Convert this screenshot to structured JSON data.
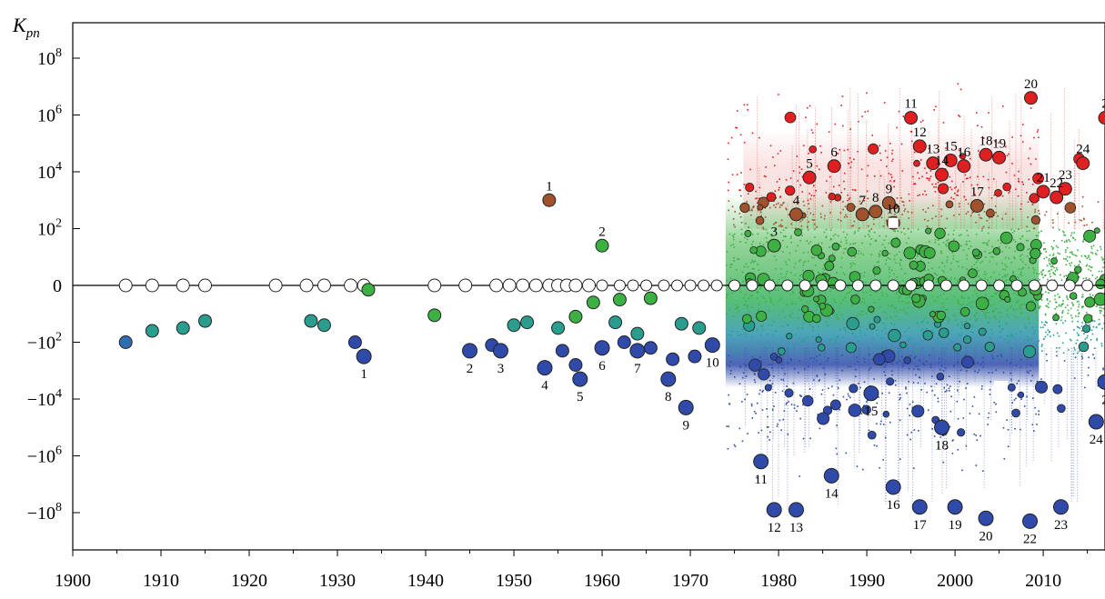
{
  "chart_data": {
    "type": "scatter",
    "title": "",
    "ylabel": "K",
    "ylabel_sub": "pn",
    "xlabel": "",
    "xlim": [
      1900,
      2017
    ],
    "x_ticks": [
      1900,
      1910,
      1920,
      1930,
      1940,
      1950,
      1960,
      1970,
      1980,
      1990,
      2000,
      2010
    ],
    "y_scale": "symmetric-log",
    "y_ticks": [
      {
        "v": 8,
        "base": "10",
        "exp": "8"
      },
      {
        "v": 6,
        "base": "10",
        "exp": "6"
      },
      {
        "v": 4,
        "base": "10",
        "exp": "4"
      },
      {
        "v": 2,
        "base": "10",
        "exp": "2"
      },
      {
        "v": 0,
        "base": "0",
        "exp": ""
      },
      {
        "v": -2,
        "base": "−10",
        "exp": "2"
      },
      {
        "v": -4,
        "base": "−10",
        "exp": "4"
      },
      {
        "v": -6,
        "base": "−10",
        "exp": "6"
      },
      {
        "v": -8,
        "base": "−10",
        "exp": "8"
      }
    ],
    "grid": false,
    "colors": {
      "positive_high": "#e02020",
      "positive_mid": "#a0522d",
      "near_zero": "#3cb043",
      "negative_mid": "#2a9d8f",
      "negative_high": "#2f4aa8",
      "zero_marker": "#ffffff"
    },
    "numbered_positive": [
      {
        "label": "1",
        "x": 1954.0,
        "y": 3.0
      },
      {
        "label": "2",
        "x": 1960.0,
        "y": 1.4
      },
      {
        "label": "3",
        "x": 1979.5,
        "y": 1.4
      },
      {
        "label": "4",
        "x": 1982.0,
        "y": 2.5
      },
      {
        "label": "5",
        "x": 1983.5,
        "y": 3.8
      },
      {
        "label": "6",
        "x": 1986.3,
        "y": 4.2
      },
      {
        "label": "7",
        "x": 1989.5,
        "y": 2.5
      },
      {
        "label": "8",
        "x": 1991.0,
        "y": 2.6
      },
      {
        "label": "9",
        "x": 1992.5,
        "y": 2.9
      },
      {
        "label": "10",
        "x": 1993.0,
        "y": 2.2
      },
      {
        "label": "11",
        "x": 1995.0,
        "y": 5.9
      },
      {
        "label": "12",
        "x": 1996.0,
        "y": 4.9
      },
      {
        "label": "13",
        "x": 1997.5,
        "y": 4.3
      },
      {
        "label": "14",
        "x": 1998.5,
        "y": 3.9
      },
      {
        "label": "15",
        "x": 1999.5,
        "y": 4.4
      },
      {
        "label": "16",
        "x": 2001.0,
        "y": 4.2
      },
      {
        "label": "17",
        "x": 2002.5,
        "y": 2.8
      },
      {
        "label": "18",
        "x": 2003.5,
        "y": 4.6
      },
      {
        "label": "19",
        "x": 2005.0,
        "y": 4.5
      },
      {
        "label": "20",
        "x": 2008.6,
        "y": 6.6
      },
      {
        "label": "21",
        "x": 2010.0,
        "y": 3.3
      },
      {
        "label": "22",
        "x": 2011.5,
        "y": 3.1
      },
      {
        "label": "23",
        "x": 2012.5,
        "y": 3.4
      },
      {
        "label": "24",
        "x": 2014.5,
        "y": 4.3
      },
      {
        "label": "2",
        "x": 2017.0,
        "y": 5.9
      }
    ],
    "numbered_negative": [
      {
        "label": "1",
        "x": 1933.0,
        "y": -2.5
      },
      {
        "label": "2",
        "x": 1945.0,
        "y": -2.3
      },
      {
        "label": "3",
        "x": 1948.5,
        "y": -2.3
      },
      {
        "label": "4",
        "x": 1953.5,
        "y": -2.9
      },
      {
        "label": "5",
        "x": 1957.5,
        "y": -3.3
      },
      {
        "label": "6",
        "x": 1960.0,
        "y": -2.2
      },
      {
        "label": "7",
        "x": 1964.0,
        "y": -2.3
      },
      {
        "label": "8",
        "x": 1967.5,
        "y": -3.3
      },
      {
        "label": "9",
        "x": 1969.5,
        "y": -4.3
      },
      {
        "label": "10",
        "x": 1972.5,
        "y": -2.1
      },
      {
        "label": "11",
        "x": 1978.0,
        "y": -6.2
      },
      {
        "label": "12",
        "x": 1979.5,
        "y": -7.9
      },
      {
        "label": "13",
        "x": 1982.0,
        "y": -7.9
      },
      {
        "label": "14",
        "x": 1986.0,
        "y": -6.7
      },
      {
        "label": "15",
        "x": 1990.5,
        "y": -3.8
      },
      {
        "label": "16",
        "x": 1993.0,
        "y": -7.1
      },
      {
        "label": "17",
        "x": 1996.0,
        "y": -7.8
      },
      {
        "label": "18",
        "x": 1998.5,
        "y": -5.0
      },
      {
        "label": "19",
        "x": 2000.0,
        "y": -7.8
      },
      {
        "label": "20",
        "x": 2003.5,
        "y": -8.2
      },
      {
        "label": "22",
        "x": 2008.5,
        "y": -8.3
      },
      {
        "label": "23",
        "x": 2012.0,
        "y": -7.8
      },
      {
        "label": "24",
        "x": 2016.0,
        "y": -4.8
      },
      {
        "label": "2",
        "x": 2017.0,
        "y": -3.4
      }
    ],
    "zero_points_x": [
      1906,
      1909,
      1912.5,
      1915,
      1923,
      1926.5,
      1928.5,
      1931.5,
      1933,
      1941,
      1944.5,
      1948,
      1949.5,
      1951,
      1952.5,
      1954,
      1955,
      1956,
      1957,
      1958.5,
      1960,
      1962,
      1963.5,
      1965,
      1967,
      1968.5,
      1970,
      1971.5,
      1973,
      1975,
      1977,
      1979,
      1981,
      1983,
      1985,
      1987,
      1989,
      1991,
      1993,
      1995,
      1997,
      1999,
      2001,
      2003,
      2005,
      2007,
      2009,
      2011,
      2013,
      2015
    ],
    "early_negative_points": [
      {
        "x": 1906,
        "y": -2.0,
        "c": "#2f6db0"
      },
      {
        "x": 1909,
        "y": -1.6,
        "c": "#2a9d8f"
      },
      {
        "x": 1912.5,
        "y": -1.5,
        "c": "#2a9d8f"
      },
      {
        "x": 1915,
        "y": -1.25,
        "c": "#2a9d8f"
      },
      {
        "x": 1927,
        "y": -1.25,
        "c": "#2a9d8f"
      },
      {
        "x": 1928.5,
        "y": -1.4,
        "c": "#2a9d8f"
      },
      {
        "x": 1933.5,
        "y": -0.15,
        "c": "#3cb043"
      },
      {
        "x": 1941,
        "y": -1.05,
        "c": "#3cb043"
      },
      {
        "x": 1950,
        "y": -1.4,
        "c": "#2a9d8f"
      },
      {
        "x": 1951.5,
        "y": -1.3,
        "c": "#2a9d8f"
      },
      {
        "x": 1955,
        "y": -1.5,
        "c": "#2a9d8f"
      },
      {
        "x": 1957,
        "y": -1.1,
        "c": "#3cb043"
      },
      {
        "x": 1959,
        "y": -0.6,
        "c": "#3cb043"
      },
      {
        "x": 1962,
        "y": -0.5,
        "c": "#3cb043"
      },
      {
        "x": 1965.5,
        "y": -0.45,
        "c": "#3cb043"
      },
      {
        "x": 1961.5,
        "y": -1.3,
        "c": "#2a9d8f"
      },
      {
        "x": 1964,
        "y": -1.7,
        "c": "#2a9d8f"
      },
      {
        "x": 1969,
        "y": -1.35,
        "c": "#2a9d8f"
      },
      {
        "x": 1971,
        "y": -1.5,
        "c": "#2a9d8f"
      },
      {
        "x": 1932,
        "y": -2.0,
        "c": "#2f4aa8"
      },
      {
        "x": 1947.5,
        "y": -2.1,
        "c": "#2f4aa8"
      },
      {
        "x": 1955.5,
        "y": -2.3,
        "c": "#2f4aa8"
      },
      {
        "x": 1957,
        "y": -2.8,
        "c": "#2f4aa8"
      },
      {
        "x": 1962.5,
        "y": -2.0,
        "c": "#2f4aa8"
      },
      {
        "x": 1965.5,
        "y": -2.2,
        "c": "#2f4aa8"
      },
      {
        "x": 1968,
        "y": -2.6,
        "c": "#2f4aa8"
      },
      {
        "x": 1970.5,
        "y": -2.5,
        "c": "#2f4aa8"
      }
    ]
  }
}
